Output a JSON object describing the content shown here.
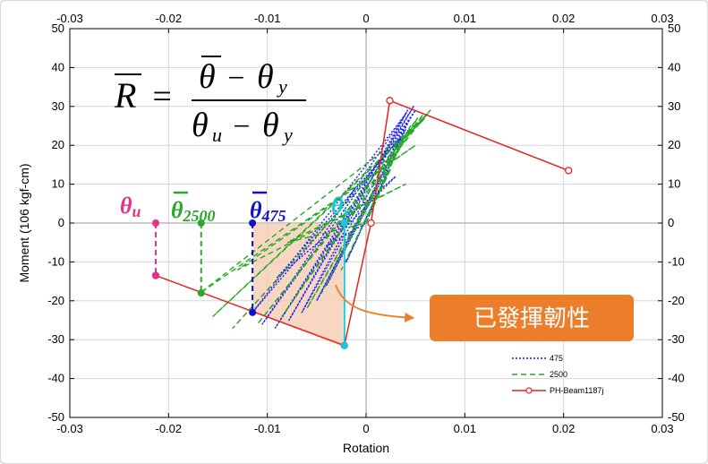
{
  "chart_data": {
    "type": "line",
    "title": "",
    "xlabel": "Rotation",
    "ylabel": "Moment (106  kgf-cm)",
    "xlim": [
      -0.03,
      0.03
    ],
    "ylim": [
      -50,
      50
    ],
    "x_ticks": [
      -0.03,
      -0.02,
      -0.01,
      0,
      0.01,
      0.02,
      0.03
    ],
    "x_tick_labels": [
      "-0.03",
      "-0.02",
      "-0.01",
      "0",
      "0.01",
      "0.02",
      "0.03"
    ],
    "y_ticks": [
      -50,
      -40,
      -30,
      -20,
      -10,
      0,
      10,
      20,
      30,
      40,
      50
    ],
    "y_tick_labels": [
      "-50",
      "-40",
      "-30",
      "-20",
      "-10",
      "0",
      "10",
      "20",
      "30",
      "40",
      "50"
    ],
    "grid": true,
    "legend_position": "bottom-right",
    "series": [
      {
        "name": "475",
        "color": "#1a1aff",
        "style": "dotted",
        "x": [
          0,
          0.002,
          -0.002,
          0.003,
          -0.004,
          0.004,
          -0.005,
          0.0045,
          -0.0065,
          0.0042,
          -0.0078,
          0.0048,
          -0.0092,
          0.005,
          -0.0105,
          0.004,
          -0.0115,
          0.0035,
          -0.009,
          0.003,
          -0.004,
          0.0
        ],
        "y": [
          0,
          12,
          -10,
          18,
          -16,
          24,
          -20,
          27,
          -23,
          29,
          -25,
          30,
          -27,
          29,
          -26,
          28,
          -23,
          22,
          -14,
          12,
          -6,
          0
        ]
      },
      {
        "name": "2500",
        "color": "#22a822",
        "style": "dashed",
        "x": [
          0,
          0.0025,
          -0.0025,
          0.0035,
          -0.0045,
          0.0045,
          -0.006,
          0.0052,
          -0.0085,
          0.0058,
          -0.011,
          0.0065,
          -0.0135,
          0.0062,
          -0.0155,
          0.006,
          -0.0168,
          0.005,
          -0.013,
          0.004,
          -0.008,
          0.0
        ],
        "y": [
          0,
          14,
          -12,
          20,
          -18,
          25,
          -22,
          27,
          -24,
          28,
          -26,
          29,
          -27,
          28,
          -24,
          27,
          -18,
          20,
          -12,
          10,
          -5,
          0
        ]
      },
      {
        "name": "PH-Beam1187j",
        "color": "#e8201c",
        "style": "solid",
        "marker": "circle",
        "x": [
          0.0205,
          0.0024,
          0.0005,
          -0.0022,
          -0.0213
        ],
        "y": [
          13.5,
          31.5,
          0,
          -31.5,
          -13.5
        ]
      }
    ],
    "annotations": [
      {
        "text": "θu",
        "x": -0.0213,
        "color": "#e8308a"
      },
      {
        "text": "θ2500",
        "x": -0.0167,
        "color": "#2aa82a"
      },
      {
        "text": "θ475",
        "x": -0.0115,
        "color": "#1010c8"
      },
      {
        "text": "θy",
        "x": -0.0022,
        "color": "#18c8d8"
      }
    ],
    "formula": {
      "lhs": "R",
      "eq": "=",
      "num_a": "θ",
      "num_minus": "−",
      "num_b": "θ",
      "num_b_sub": "y",
      "den_a": "θ",
      "den_a_sub": "u",
      "den_minus": "−",
      "den_b": "θ",
      "den_b_sub": "y"
    },
    "callout": "已發揮韌性"
  }
}
